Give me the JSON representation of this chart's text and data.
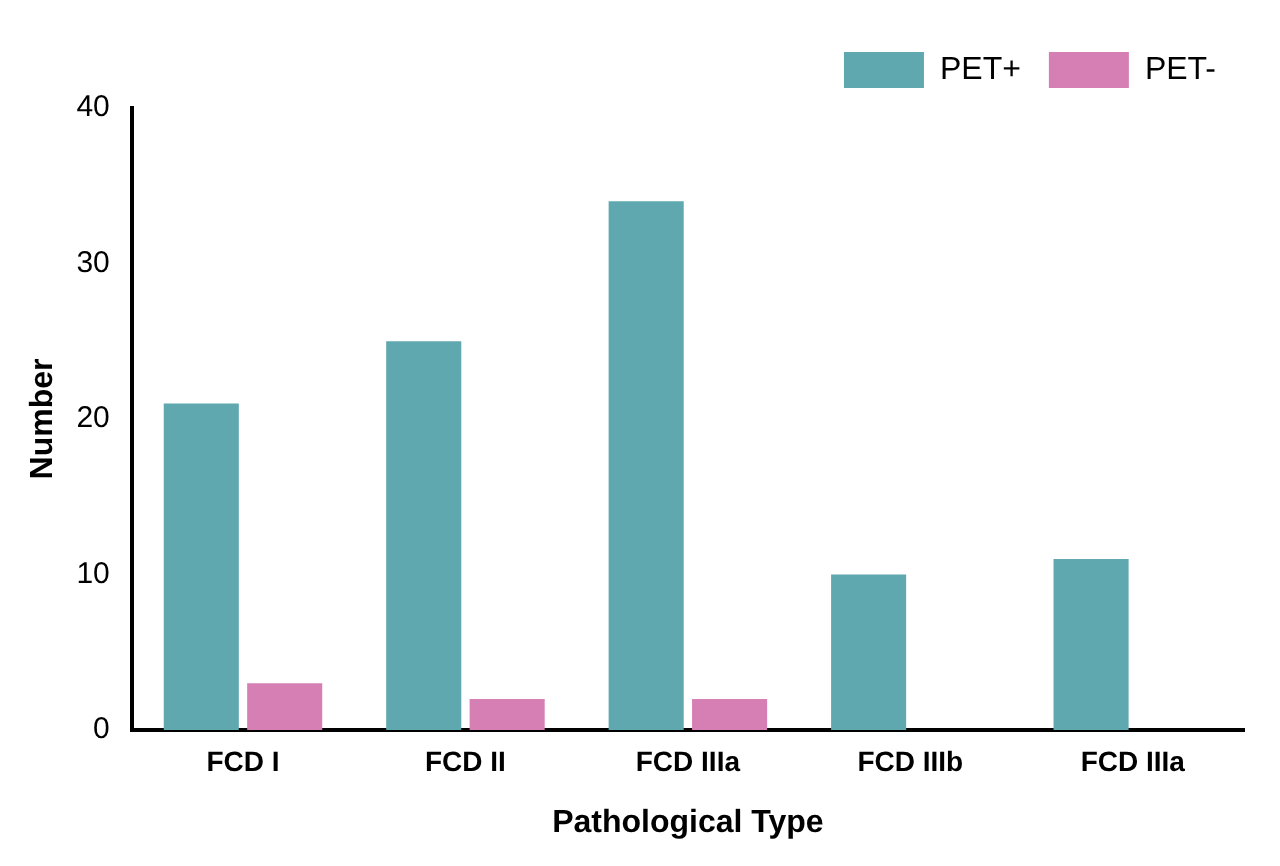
{
  "chart_data": {
    "type": "bar",
    "xlabel": "Pathological Type",
    "ylabel": "Number",
    "categories": [
      "FCD I",
      "FCD II",
      "FCD IIIa",
      "FCD IIIb",
      "FCD IIIa"
    ],
    "series": [
      {
        "name": "PET+",
        "color": "#5fa8b0",
        "values": [
          21,
          25,
          34,
          10,
          11
        ]
      },
      {
        "name": "PET-",
        "color": "#d67fb5",
        "values": [
          3,
          2,
          2,
          0,
          0
        ]
      }
    ],
    "ylim": [
      0,
      40
    ],
    "yticks": [
      0,
      10,
      20,
      30,
      40
    ],
    "grid": false,
    "legend": "top right"
  }
}
